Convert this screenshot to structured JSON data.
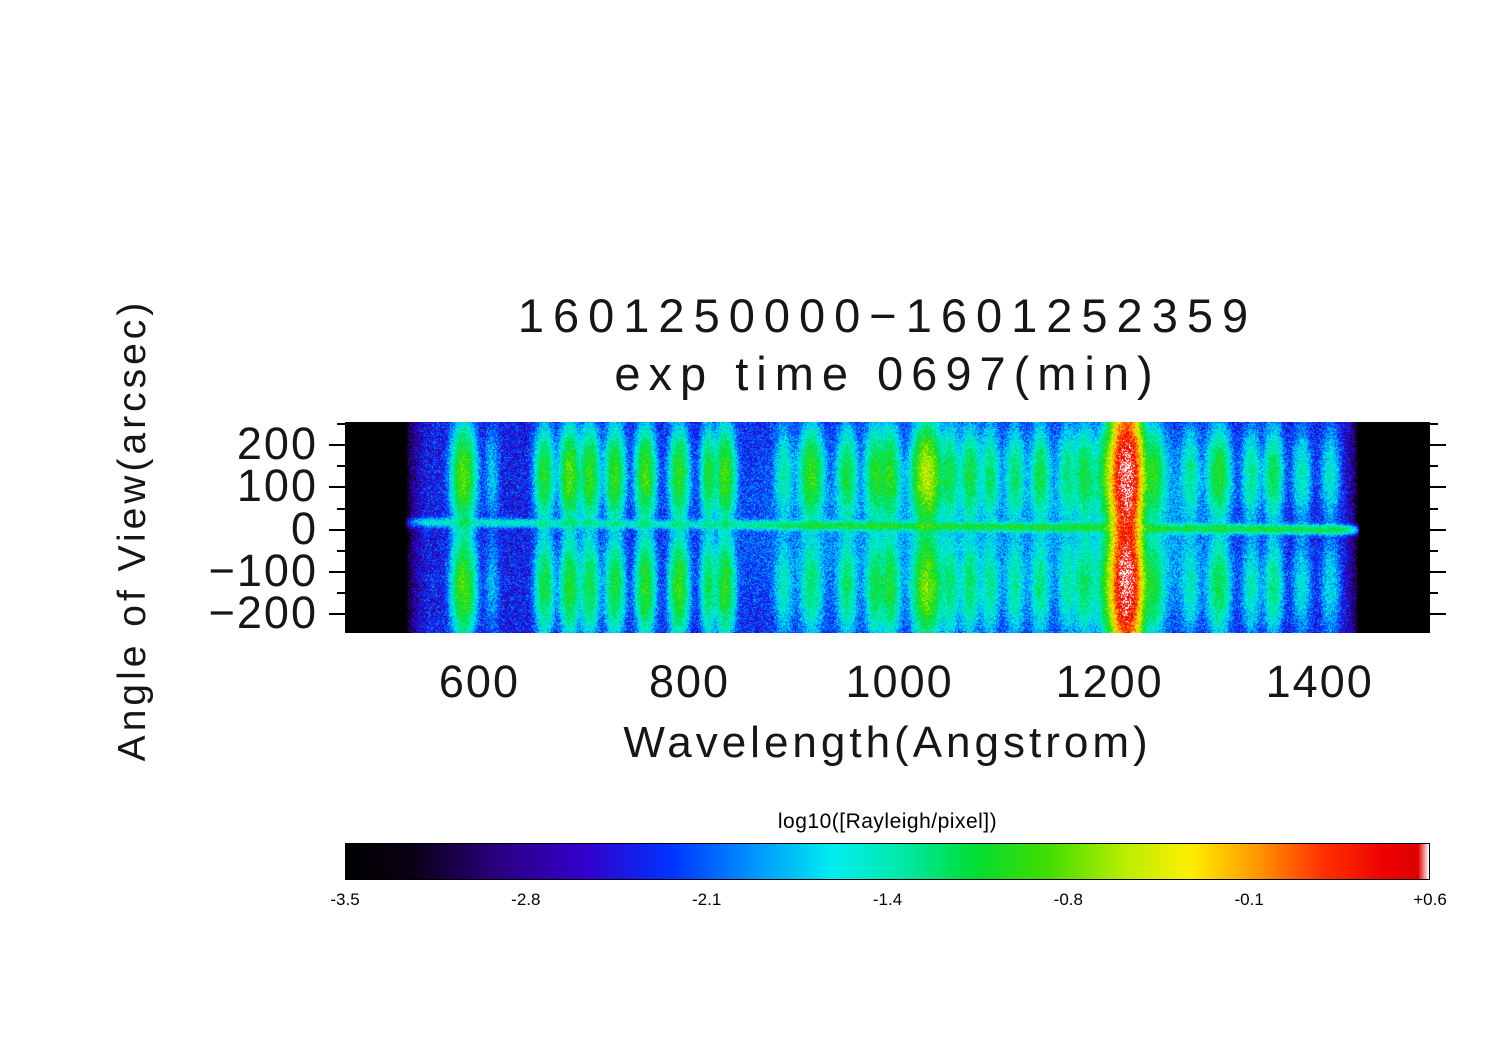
{
  "title": {
    "line1": "1601250000−1601252359",
    "line2": "exp time 0697(min)"
  },
  "y_axis": {
    "label": "Angle of View(arcsec)",
    "ticks": [
      {
        "value": 200,
        "label": "200"
      },
      {
        "value": 100,
        "label": "100"
      },
      {
        "value": 0,
        "label": "0"
      },
      {
        "value": -100,
        "label": "−100"
      },
      {
        "value": -200,
        "label": "−200"
      }
    ],
    "minor_ticks": [
      250,
      150,
      50,
      -50,
      -150
    ]
  },
  "x_axis": {
    "label": "Wavelength(Angstrom)",
    "ticks": [
      {
        "value": 600,
        "label": "600"
      },
      {
        "value": 800,
        "label": "800"
      },
      {
        "value": 1000,
        "label": "1000"
      },
      {
        "value": 1200,
        "label": "1200"
      },
      {
        "value": 1400,
        "label": "1400"
      }
    ]
  },
  "colorbar": {
    "title": "log10([Rayleigh/pixel])",
    "labels": [
      "-3.5",
      "-2.8",
      "-2.1",
      "-1.4",
      "-0.8",
      "-0.1",
      "+0.6"
    ],
    "min": -3.5,
    "max": 0.6
  },
  "chart_data": {
    "type": "heatmap",
    "title": "1601250000−1601252359 exp time 0697(min)",
    "xlabel": "Wavelength(Angstrom)",
    "ylabel": "Angle of View(arcsec)",
    "value_label": "log10([Rayleigh/pixel])",
    "x_range": [
      472,
      1505
    ],
    "data_x_range": [
      529,
      1438
    ],
    "y_range": [
      -245,
      255
    ],
    "value_range": [
      -3.5,
      0.6
    ],
    "background_level": -2.38,
    "noise_amplitude": 0.6,
    "vertical_profile": {
      "top": {
        "center": 130,
        "sigma": 58
      },
      "bottom": {
        "center": -135,
        "sigma": 62
      },
      "mid": {
        "center": 10,
        "sigma": 210
      }
    },
    "streak": {
      "y_at_1000": 8,
      "slope": -0.02,
      "sigma": 6,
      "level": -1.15,
      "ramp_start": 820,
      "ramp_width": 120,
      "base_weight": 0.35
    },
    "diffuse": [
      {
        "wl": 1010,
        "xsig": 110,
        "ysig": 140,
        "level": -2.15
      },
      {
        "wl": 1216,
        "xsig": 50,
        "ysig": 150,
        "level": -2.0
      }
    ],
    "emission_lines": [
      {
        "wl": 585,
        "sigma": 6,
        "top": -0.85,
        "bottom": -0.9,
        "mid": -1.9
      },
      {
        "wl": 612,
        "sigma": 4,
        "top": -1.9,
        "bottom": -2.0,
        "mid": -3.0
      },
      {
        "wl": 662,
        "sigma": 5,
        "top": -1.05,
        "bottom": -1.15,
        "mid": -2.5
      },
      {
        "wl": 686,
        "sigma": 5,
        "top": -0.85,
        "bottom": -1.05,
        "mid": -2.4
      },
      {
        "wl": 705,
        "sigma": 5,
        "top": -0.95,
        "bottom": -1.15,
        "mid": -2.5
      },
      {
        "wl": 729,
        "sigma": 5,
        "top": -0.95,
        "bottom": -1.1,
        "mid": -2.5
      },
      {
        "wl": 758,
        "sigma": 5,
        "top": -0.9,
        "bottom": -1.0,
        "mid": -2.4
      },
      {
        "wl": 790,
        "sigma": 5,
        "top": -1.0,
        "bottom": -0.95,
        "mid": -2.4
      },
      {
        "wl": 818,
        "sigma": 4,
        "top": -1.1,
        "bottom": -1.2,
        "mid": -2.6
      },
      {
        "wl": 834,
        "sigma": 5,
        "top": -0.9,
        "bottom": -1.0,
        "mid": -2.4
      },
      {
        "wl": 890,
        "sigma": 5,
        "top": -1.5,
        "bottom": -1.6,
        "mid": -2.8
      },
      {
        "wl": 916,
        "sigma": 6,
        "top": -0.95,
        "bottom": -1.35,
        "mid": -2.5
      },
      {
        "wl": 950,
        "sigma": 5,
        "top": -1.15,
        "bottom": -1.3,
        "mid": -2.6
      },
      {
        "wl": 977,
        "sigma": 5,
        "top": -1.05,
        "bottom": -1.2,
        "mid": -2.5
      },
      {
        "wl": 991,
        "sigma": 5,
        "top": -1.0,
        "bottom": -1.1,
        "mid": -2.5
      },
      {
        "wl": 1026,
        "sigma": 7,
        "top": -0.55,
        "bottom": -0.75,
        "mid": -2.0
      },
      {
        "wl": 1048,
        "sigma": 5,
        "top": -1.2,
        "bottom": -1.35,
        "mid": -2.6
      },
      {
        "wl": 1067,
        "sigma": 5,
        "top": -1.15,
        "bottom": -1.3,
        "mid": -2.6
      },
      {
        "wl": 1086,
        "sigma": 5,
        "top": -1.3,
        "bottom": -1.45,
        "mid": -2.7
      },
      {
        "wl": 1110,
        "sigma": 5,
        "top": -1.3,
        "bottom": -1.5,
        "mid": -2.7
      },
      {
        "wl": 1134,
        "sigma": 5,
        "top": -1.2,
        "bottom": -1.4,
        "mid": -2.6
      },
      {
        "wl": 1160,
        "sigma": 5,
        "top": -1.35,
        "bottom": -1.55,
        "mid": -2.7
      },
      {
        "wl": 1176,
        "sigma": 5,
        "top": -1.2,
        "bottom": -1.35,
        "mid": -2.6
      },
      {
        "wl": 1200,
        "sigma": 5,
        "top": -1.05,
        "bottom": -1.2,
        "mid": -2.5
      },
      {
        "wl": 1216,
        "sigma": 6.5,
        "top": 0.5,
        "bottom": 0.48,
        "mid": 0.22
      },
      {
        "wl": 1216,
        "sigma": 17,
        "top": -1.05,
        "bottom": -1.15,
        "mid": -2.1
      },
      {
        "wl": 1243,
        "sigma": 5,
        "top": -1.2,
        "bottom": -1.35,
        "mid": -2.6
      },
      {
        "wl": 1277,
        "sigma": 5,
        "top": -1.45,
        "bottom": -1.6,
        "mid": -2.8
      },
      {
        "wl": 1304,
        "sigma": 6,
        "top": -1.05,
        "bottom": -1.2,
        "mid": -2.5
      },
      {
        "wl": 1335,
        "sigma": 5,
        "top": -1.4,
        "bottom": -1.55,
        "mid": -2.7
      },
      {
        "wl": 1356,
        "sigma": 5,
        "top": -1.2,
        "bottom": -1.35,
        "mid": -2.6
      },
      {
        "wl": 1383,
        "sigma": 5,
        "top": -1.55,
        "bottom": -1.7,
        "mid": -2.8
      },
      {
        "wl": 1410,
        "sigma": 5,
        "top": -1.6,
        "bottom": -1.75,
        "mid": -2.9
      }
    ],
    "colormap": [
      [
        0.0,
        "#000000"
      ],
      [
        0.06,
        "#0a0014"
      ],
      [
        0.14,
        "#2a0080"
      ],
      [
        0.22,
        "#3300cc"
      ],
      [
        0.3,
        "#0033ff"
      ],
      [
        0.38,
        "#0099ff"
      ],
      [
        0.45,
        "#00eeee"
      ],
      [
        0.52,
        "#00e8a0"
      ],
      [
        0.58,
        "#00dd33"
      ],
      [
        0.65,
        "#44dd00"
      ],
      [
        0.72,
        "#bbee00"
      ],
      [
        0.78,
        "#ffee00"
      ],
      [
        0.84,
        "#ff9900"
      ],
      [
        0.9,
        "#ff3300"
      ],
      [
        0.96,
        "#ee0000"
      ],
      [
        0.99,
        "#dd0000"
      ],
      [
        1.0,
        "#ffffff"
      ]
    ]
  }
}
